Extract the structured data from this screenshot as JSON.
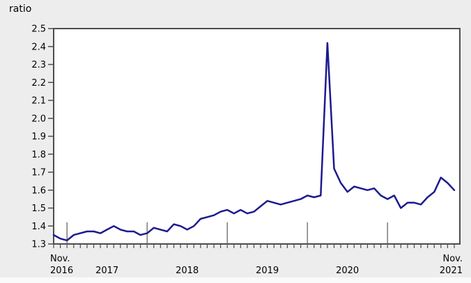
{
  "chart": {
    "unit_label": "ratio"
  },
  "chart_data": {
    "type": "line",
    "title": "",
    "ylabel": "ratio",
    "xlabel": "",
    "ylim": [
      1.3,
      2.5
    ],
    "ytick_step": 0.1,
    "yticks": [
      2.5,
      2.4,
      2.3,
      2.2,
      2.1,
      2.0,
      1.9,
      1.8,
      1.7,
      1.6,
      1.5,
      1.4,
      1.3
    ],
    "grid": false,
    "legend_position": "none",
    "colors": {
      "line": "#1b1b8f",
      "axis": "#4d4d4d",
      "plot_background": "#ffffff",
      "page_background": "#ededed"
    },
    "x_axis": {
      "start_label": [
        "Nov.",
        "2016"
      ],
      "end_label": [
        "Nov.",
        "2021"
      ],
      "year_labels": [
        "2017",
        "2018",
        "2019",
        "2020"
      ],
      "tick_frequency": "monthly",
      "tall_tick_frequency": "january"
    },
    "series": [
      {
        "name": "ratio",
        "color": "#1b1b8f",
        "months": [
          "2016-11",
          "2016-12",
          "2017-01",
          "2017-02",
          "2017-03",
          "2017-04",
          "2017-05",
          "2017-06",
          "2017-07",
          "2017-08",
          "2017-09",
          "2017-10",
          "2017-11",
          "2017-12",
          "2018-01",
          "2018-02",
          "2018-03",
          "2018-04",
          "2018-05",
          "2018-06",
          "2018-07",
          "2018-08",
          "2018-09",
          "2018-10",
          "2018-11",
          "2018-12",
          "2019-01",
          "2019-02",
          "2019-03",
          "2019-04",
          "2019-05",
          "2019-06",
          "2019-07",
          "2019-08",
          "2019-09",
          "2019-10",
          "2019-11",
          "2019-12",
          "2020-01",
          "2020-02",
          "2020-03",
          "2020-04",
          "2020-05",
          "2020-06",
          "2020-07",
          "2020-08",
          "2020-09",
          "2020-10",
          "2020-11",
          "2020-12",
          "2021-01",
          "2021-02",
          "2021-03",
          "2021-04",
          "2021-05",
          "2021-06",
          "2021-07",
          "2021-08",
          "2021-09",
          "2021-10",
          "2021-11"
        ],
        "values": [
          1.35,
          1.33,
          1.32,
          1.35,
          1.36,
          1.37,
          1.37,
          1.36,
          1.38,
          1.4,
          1.38,
          1.37,
          1.37,
          1.35,
          1.36,
          1.39,
          1.38,
          1.37,
          1.41,
          1.4,
          1.38,
          1.4,
          1.44,
          1.45,
          1.46,
          1.48,
          1.49,
          1.47,
          1.49,
          1.47,
          1.48,
          1.51,
          1.54,
          1.53,
          1.52,
          1.53,
          1.54,
          1.55,
          1.57,
          1.56,
          1.57,
          2.42,
          1.72,
          1.64,
          1.59,
          1.62,
          1.61,
          1.6,
          1.61,
          1.57,
          1.55,
          1.57,
          1.5,
          1.53,
          1.53,
          1.52,
          1.56,
          1.59,
          1.67,
          1.64,
          1.6
        ]
      }
    ]
  }
}
